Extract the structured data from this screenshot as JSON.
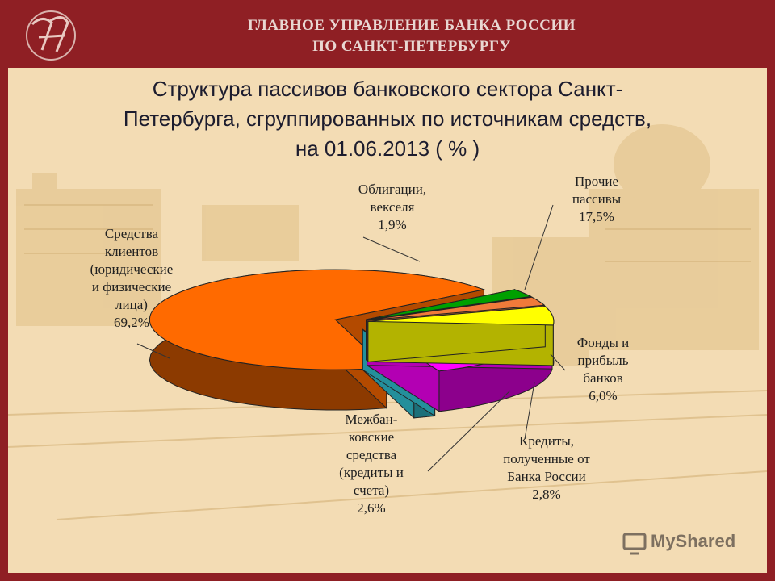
{
  "header": {
    "line1": "ГЛАВНОЕ УПРАВЛЕНИЕ БАНКА РОССИИ",
    "line2": "ПО САНКТ-ПЕТЕРБУРГУ"
  },
  "watermark": "MyShared",
  "colors": {
    "header_bg": "#8f1f24",
    "panel_bg": "#f3dcb4"
  },
  "chart_data": {
    "type": "pie",
    "title_lines": [
      "Структура пассивов банковского сектора Санкт-",
      "Петербурга, сгруппированных по источникам средств,",
      "на 01.06.2013  ( % )"
    ],
    "labels_visible": [
      "Облигации, векселя 1,9%",
      "Прочие пассивы 17,5%",
      "Фонды и прибыль банков 6,0%",
      "Кредиты, полученные от Банка России 2,8%",
      "Межбанковские средства (кредиты и счета) 2,6%",
      "Средства клиентов (юридические и физические лица) 69,2%"
    ],
    "slices": [
      {
        "label": "Облигации,\nвекселя\n1,9%",
        "value": 1.9,
        "color": "#33ccdd"
      },
      {
        "label": "Прочие\nпассивы\n17,5%",
        "value": 17.5,
        "color": "#ff00ff"
      },
      {
        "label": "Фонды и\nприбыль\nбанков\n6,0%",
        "value": 6.0,
        "color": "#ffff00"
      },
      {
        "label": "Кредиты,\nполученные от\nБанка России\n2,8%",
        "value": 2.8,
        "color": "#f07a3a"
      },
      {
        "label": "Межбан-\nковские\nсредства\n(кредиты и\nсчета)\n2,6%",
        "value": 2.6,
        "color": "#00a000"
      },
      {
        "label": "Средства\nклиентов\n(юридические\nи физические\nлица)\n69,2%",
        "value": 69.2,
        "color": "#ff6a00"
      }
    ]
  }
}
